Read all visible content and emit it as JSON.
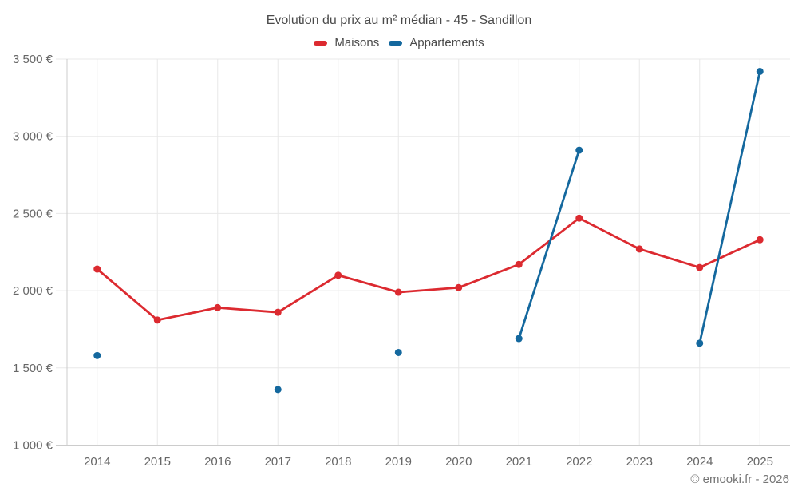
{
  "chart_data": {
    "type": "line",
    "title": "Evolution du prix au m² médian - 45 - Sandillon",
    "categories": [
      "2014",
      "2015",
      "2016",
      "2017",
      "2018",
      "2019",
      "2020",
      "2021",
      "2022",
      "2023",
      "2024",
      "2025"
    ],
    "series": [
      {
        "name": "Maisons",
        "color": "#dc2a30",
        "values": [
          2140,
          1810,
          1890,
          1860,
          2100,
          1990,
          2020,
          2170,
          2470,
          2270,
          2150,
          2330
        ]
      },
      {
        "name": "Appartements",
        "color": "#14689e",
        "values": [
          1580,
          null,
          null,
          1360,
          null,
          1600,
          null,
          1690,
          2910,
          null,
          1660,
          3420
        ]
      }
    ],
    "xlabel": "",
    "ylabel": "",
    "ylim": [
      1000,
      3500
    ],
    "y_ticks": [
      {
        "value": 1000,
        "label": "1 000 €"
      },
      {
        "value": 1500,
        "label": "1 500 €"
      },
      {
        "value": 2000,
        "label": "2 000 €"
      },
      {
        "value": 2500,
        "label": "2 500 €"
      },
      {
        "value": 3000,
        "label": "3 000 €"
      },
      {
        "value": 3500,
        "label": "3 500 €"
      }
    ],
    "grid": true,
    "legend_position": "top",
    "currency": "€",
    "unit": "prix au m²"
  },
  "footer": {
    "copyright": "© emooki.fr - 2026"
  },
  "colors": {
    "background": "#ffffff",
    "grid": "#e8e8e8",
    "axis": "#cccccc",
    "tick_label": "#666666",
    "title_text": "#4a4a4a",
    "legend_text": "#4a4a4a",
    "copyright_text": "#757575"
  }
}
